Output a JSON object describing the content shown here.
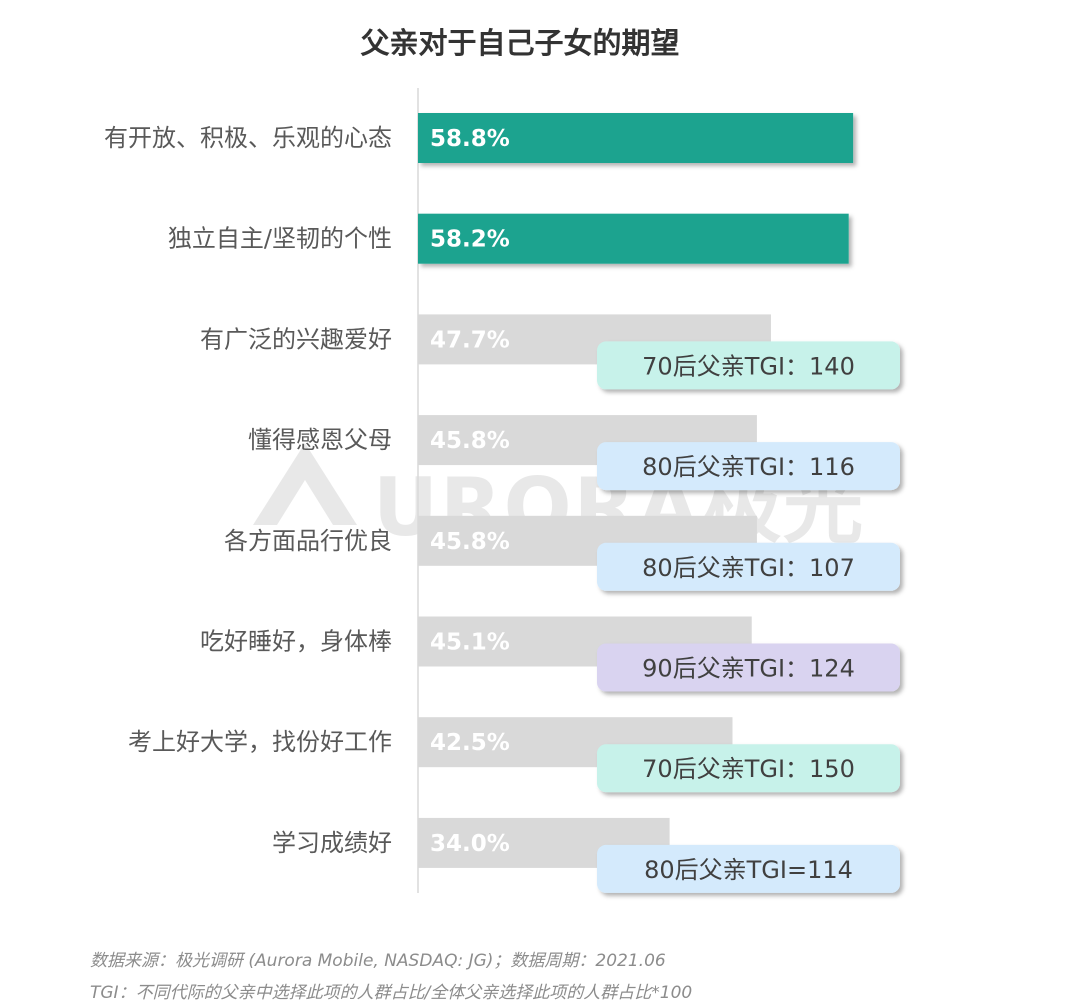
{
  "chart_data": {
    "type": "bar",
    "orientation": "horizontal",
    "title": "父亲对于自己子女的期望",
    "categories": [
      "有开放、积极、乐观的心态",
      "独立自主/坚韧的个性",
      "有广泛的兴趣爱好",
      "懂得感恩父母",
      "各方面品行优良",
      "吃好睡好，身体棒",
      "考上好大学，找份好工作",
      "学习成绩好"
    ],
    "values": [
      58.8,
      58.2,
      47.7,
      45.8,
      45.8,
      45.1,
      42.5,
      34.0
    ],
    "value_labels": [
      "58.8%",
      "58.2%",
      "47.7%",
      "45.8%",
      "45.8%",
      "45.1%",
      "42.5%",
      "34.0%"
    ],
    "value_unit": "%",
    "xlim": [
      0,
      100
    ],
    "highlight_color": "#1aa38f",
    "default_color": "#d9d9d9",
    "annotations": [
      null,
      null,
      {
        "text": "70后父亲TGI：140",
        "color": "#c7f2ea"
      },
      {
        "text": "80后父亲TGI：116",
        "color": "#d4eafc"
      },
      {
        "text": "80后父亲TGI：107",
        "color": "#d4eafc"
      },
      {
        "text": "90后父亲TGI：124",
        "color": "#d9d3f0"
      },
      {
        "text": "70后父亲TGI：150",
        "color": "#c7f2ea"
      },
      {
        "text": "80后父亲TGI=114",
        "color": "#d4eafc"
      }
    ],
    "grid": false,
    "legend": "none"
  },
  "watermark": {
    "text": "URORA极光"
  },
  "footnotes": {
    "source": "数据来源：极光调研 (Aurora Mobile, NASDAQ: JG)；数据周期：2021.06",
    "tgi": "TGI：不同代际的父亲中选择此项的人群占比/全体父亲选择此项的人群占比*100"
  }
}
